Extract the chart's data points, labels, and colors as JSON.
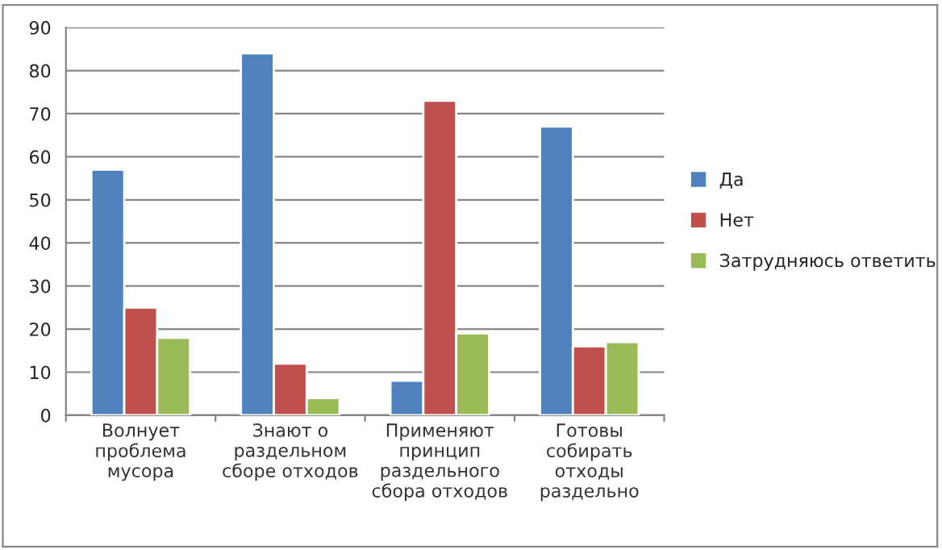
{
  "chart_data": {
    "type": "bar",
    "categories": [
      "Волнует\nпроблема\nмусора",
      "Знают о\nраздельном\nсборе отходов",
      "Применяют\nпринцип\nраздельного\nсбора отходов",
      "Готовы\nсобирать\nотходы\nраздельно"
    ],
    "series": [
      {
        "name": "Да",
        "color": "#4f81bd",
        "values": [
          57,
          84,
          8,
          67
        ]
      },
      {
        "name": "Нет",
        "color": "#c0504d",
        "values": [
          25,
          12,
          73,
          16
        ]
      },
      {
        "name": "Затрудняюсь ответить",
        "color": "#9bbb59",
        "values": [
          18,
          4,
          19,
          17
        ]
      }
    ],
    "ylim": [
      0,
      90
    ],
    "yticks": [
      0,
      10,
      20,
      30,
      40,
      50,
      60,
      70,
      80,
      90
    ],
    "grid": "y",
    "legend": "right"
  }
}
